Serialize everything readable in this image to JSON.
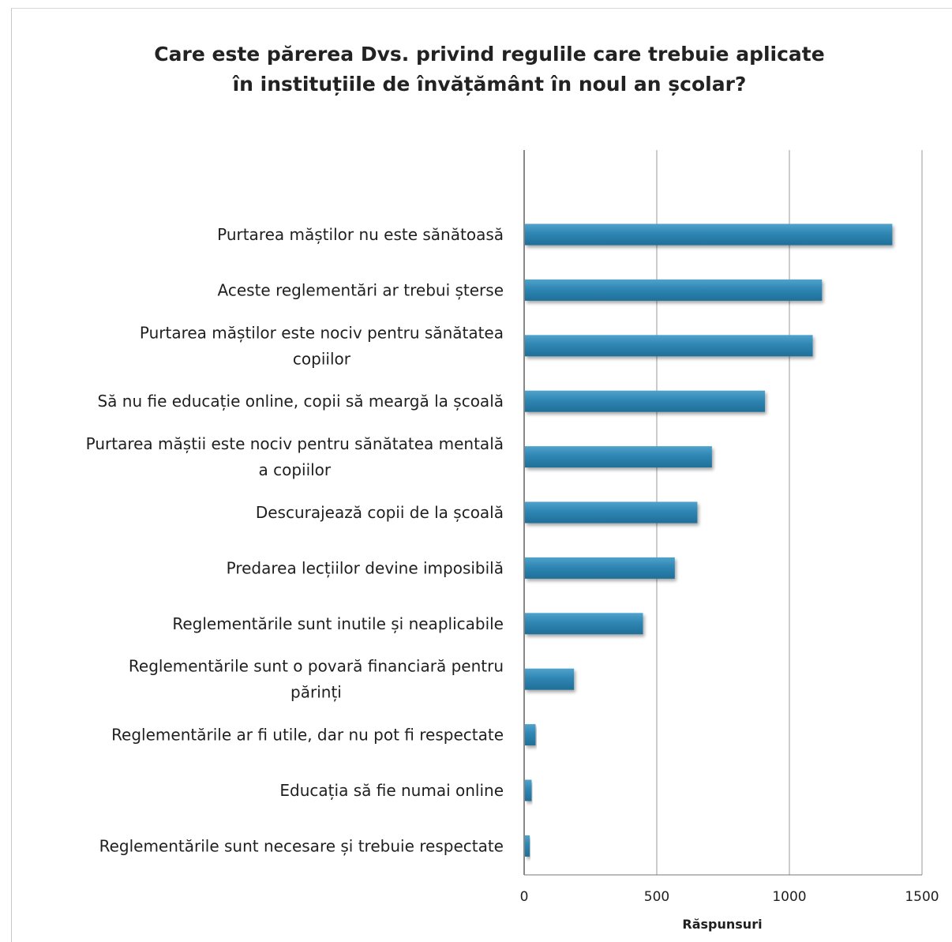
{
  "chart_data": {
    "type": "bar",
    "orientation": "horizontal",
    "title": "Care este părerea Dvs. privind regulile care trebuie aplicate în instituțiile de învățământ în noul an școlar?",
    "xlabel": "Răspunsuri",
    "ylabel": "",
    "xlim": [
      0,
      1500
    ],
    "xticks": [
      "0",
      "500",
      "1000",
      "1500"
    ],
    "grid": true,
    "legend": "none",
    "bar_color": "#2f86b3",
    "categories": [
      "Purtarea măștilor nu este sănătoasă",
      "Aceste reglementări ar trebui șterse",
      "Purtarea măștilor este nociv pentru sănătatea copiilor",
      "Să nu fie educație online, copii să meargă la școală",
      "Purtarea măștii este nociv pentru sănătatea mentală a copiilor",
      "Descurajează copii de la școală",
      "Predarea lecțiilor devine imposibilă",
      "Reglementările sunt inutile și neaplicabile",
      "Reglementările sunt o povară financiară pentru părinți",
      "Reglementările ar fi utile, dar nu pot fi respectate",
      "Educația să fie numai online",
      "Reglementările sunt necesare și trebuie respectate"
    ],
    "category_lines": [
      [
        "Purtarea măștilor nu este sănătoasă"
      ],
      [
        "Aceste reglementări ar trebui șterse"
      ],
      [
        "Purtarea măștilor este nociv pentru sănătatea",
        "copiilor"
      ],
      [
        "Să nu fie educație online, copii să meargă la școală"
      ],
      [
        "Purtarea măștii este nociv pentru sănătatea mentală",
        "a copiilor"
      ],
      [
        "Descurajează copii de la școală"
      ],
      [
        "Predarea lecțiilor devine imposibilă"
      ],
      [
        "Reglementările sunt inutile și neaplicabile"
      ],
      [
        "Reglementările sunt o povară financiară pentru",
        "părinți"
      ],
      [
        "Reglementările ar fi utile, dar nu pot fi respectate"
      ],
      [
        "Educația să fie numai online"
      ],
      [
        "Reglementările sunt necesare și trebuie respectate"
      ]
    ],
    "values": [
      1385,
      1120,
      1085,
      905,
      705,
      650,
      565,
      445,
      185,
      40,
      25,
      18
    ]
  }
}
